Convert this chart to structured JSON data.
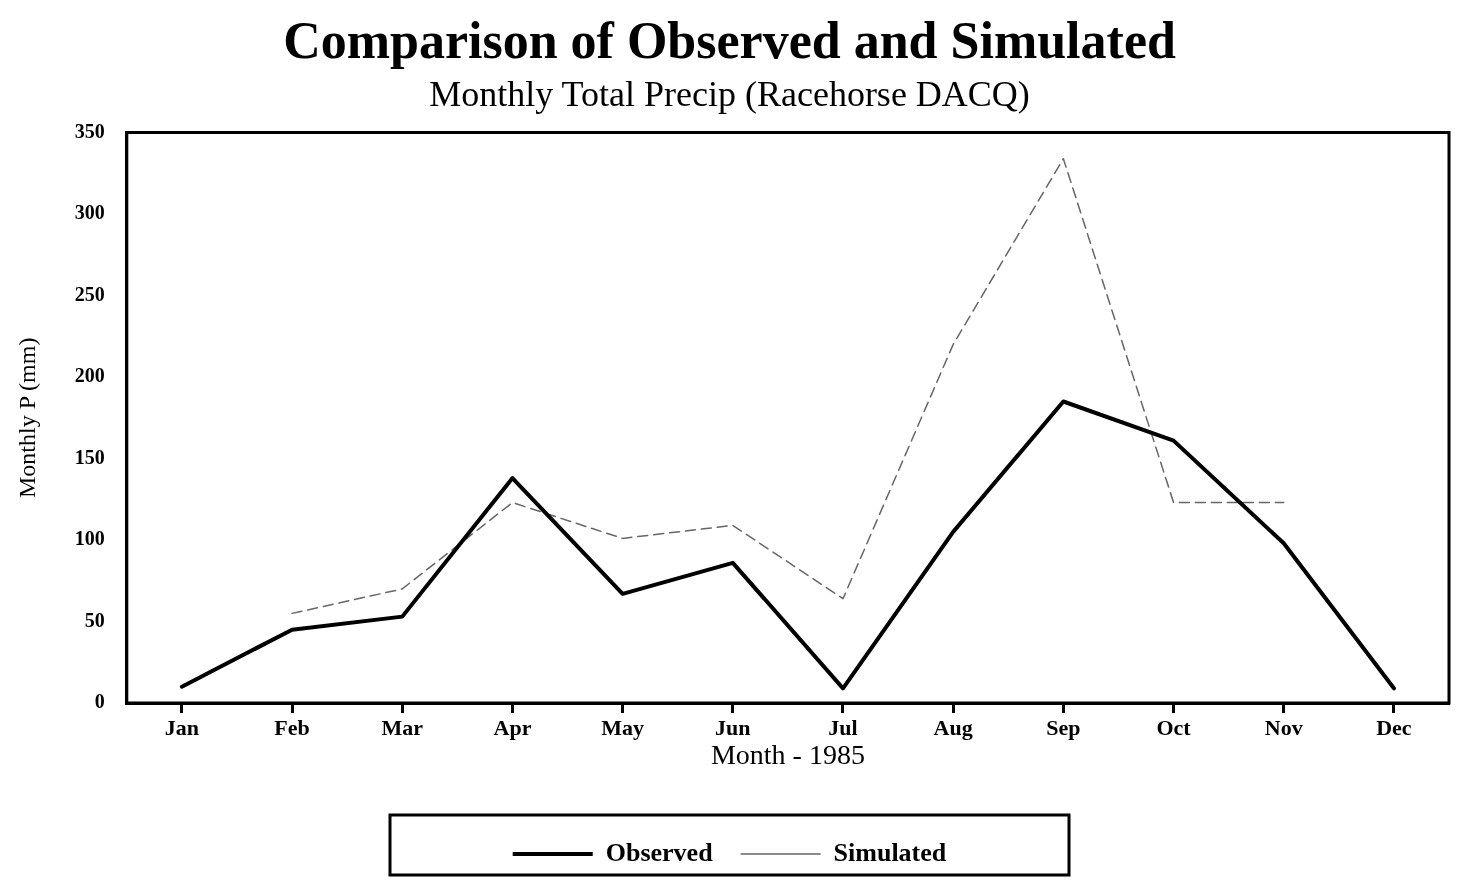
{
  "chart_data": {
    "type": "line",
    "title": "Comparison of Observed and Simulated",
    "subtitle": "Monthly Total Precip (Racehorse DACQ)",
    "xlabel": "Month - 1985",
    "ylabel": "Monthly P (mm)",
    "categories": [
      "Jan",
      "Feb",
      "Mar",
      "Apr",
      "May",
      "Jun",
      "Jul",
      "Aug",
      "Sep",
      "Oct",
      "Nov",
      "Dec"
    ],
    "series": [
      {
        "name": "Observed",
        "color": "#000000",
        "line_style": "solid",
        "values": [
          10,
          45,
          53,
          138,
          67,
          86,
          9,
          105,
          185,
          161,
          98,
          9
        ]
      },
      {
        "name": "Simulated",
        "color": "#666666",
        "line_style": "dashed",
        "values": [
          null,
          55,
          70,
          123,
          101,
          109,
          64,
          220,
          334,
          123,
          123,
          null
        ]
      }
    ],
    "ylim": [
      0,
      350
    ],
    "yticks": [
      0,
      50,
      100,
      150,
      200,
      250,
      300,
      350
    ],
    "grid": false,
    "legend": "bottom",
    "marker": "none"
  }
}
